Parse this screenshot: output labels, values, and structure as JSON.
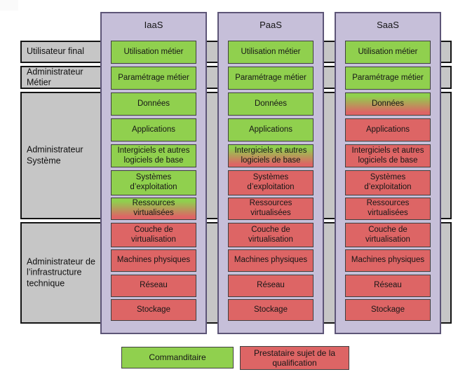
{
  "colors": {
    "green": "#90d04e",
    "red": "#dd6565",
    "lavender": "#c6bfd9",
    "col-border": "#5d5577",
    "band-bg": "#c6c6c6",
    "band-border": "#141414",
    "box-border": "#3f3f3f"
  },
  "bands": [
    {
      "label": "Utilisateur final"
    },
    {
      "label": "Administrateur Métier"
    },
    {
      "label": "Administrateur Système"
    },
    {
      "label": "Administrateur de l’infrastructure technique"
    }
  ],
  "columns": [
    {
      "title": "IaaS",
      "boxes": [
        {
          "label": "Utilisation métier",
          "color": "green"
        },
        {
          "label": "Paramétrage métier",
          "color": "green"
        },
        {
          "label": "Données",
          "color": "green"
        },
        {
          "label": "Applications",
          "color": "green"
        },
        {
          "label": "Intergiciels et autres logiciels de base",
          "color": "green"
        },
        {
          "label": "Systèmes d’exploitation",
          "color": "green"
        },
        {
          "label": "Ressources virtualisées",
          "color": "grad"
        },
        {
          "label": "Couche de virtualisation",
          "color": "red"
        },
        {
          "label": "Machines physiques",
          "color": "red"
        },
        {
          "label": "Réseau",
          "color": "red"
        },
        {
          "label": "Stockage",
          "color": "red"
        }
      ]
    },
    {
      "title": "PaaS",
      "boxes": [
        {
          "label": "Utilisation métier",
          "color": "green"
        },
        {
          "label": "Paramétrage métier",
          "color": "green"
        },
        {
          "label": "Données",
          "color": "green"
        },
        {
          "label": "Applications",
          "color": "green"
        },
        {
          "label": "Intergiciels et autres logiciels de base",
          "color": "grad"
        },
        {
          "label": "Systèmes d’exploitation",
          "color": "red"
        },
        {
          "label": "Ressources virtualisées",
          "color": "red"
        },
        {
          "label": "Couche de virtualisation",
          "color": "red"
        },
        {
          "label": "Machines physiques",
          "color": "red"
        },
        {
          "label": "Réseau",
          "color": "red"
        },
        {
          "label": "Stockage",
          "color": "red"
        }
      ]
    },
    {
      "title": "SaaS",
      "boxes": [
        {
          "label": "Utilisation métier",
          "color": "green"
        },
        {
          "label": "Paramétrage métier",
          "color": "green"
        },
        {
          "label": "Données",
          "color": "grad"
        },
        {
          "label": "Applications",
          "color": "red"
        },
        {
          "label": "Intergiciels et autres logiciels de base",
          "color": "red"
        },
        {
          "label": "Systèmes d’exploitation",
          "color": "red"
        },
        {
          "label": "Ressources virtualisées",
          "color": "red"
        },
        {
          "label": "Couche de virtualisation",
          "color": "red"
        },
        {
          "label": "Machines physiques",
          "color": "red"
        },
        {
          "label": "Réseau",
          "color": "red"
        },
        {
          "label": "Stockage",
          "color": "red"
        }
      ]
    }
  ],
  "legend": [
    {
      "label": "Commanditaire",
      "color": "green"
    },
    {
      "label": "Prestataire sujet de la qualification",
      "color": "red"
    }
  ]
}
